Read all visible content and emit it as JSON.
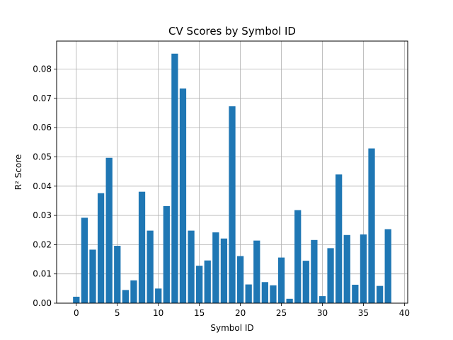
{
  "chart_data": {
    "type": "bar",
    "title": "CV Scores by Symbol ID",
    "xlabel": "Symbol ID",
    "ylabel": "R² Score",
    "x": [
      0,
      1,
      2,
      3,
      4,
      5,
      6,
      7,
      8,
      9,
      10,
      11,
      12,
      13,
      14,
      15,
      16,
      17,
      18,
      19,
      20,
      21,
      22,
      23,
      24,
      25,
      26,
      27,
      28,
      29,
      30,
      31,
      32,
      33,
      34,
      35,
      36,
      37,
      38
    ],
    "values": [
      0.0022,
      0.0292,
      0.0183,
      0.0376,
      0.0497,
      0.0196,
      0.0045,
      0.0078,
      0.0381,
      0.0248,
      0.005,
      0.0332,
      0.0853,
      0.0734,
      0.0248,
      0.0128,
      0.0146,
      0.0242,
      0.0221,
      0.0673,
      0.0161,
      0.0064,
      0.0214,
      0.0072,
      0.0061,
      0.0156,
      0.0015,
      0.0318,
      0.0145,
      0.0216,
      0.0024,
      0.0188,
      0.044,
      0.0233,
      0.0063,
      0.0235,
      0.0529,
      0.0059,
      0.0253
    ],
    "xticks": [
      "0",
      "5",
      "10",
      "15",
      "20",
      "25",
      "30",
      "35",
      "40"
    ],
    "yticks": [
      "0.00",
      "0.01",
      "0.02",
      "0.03",
      "0.04",
      "0.05",
      "0.06",
      "0.07",
      "0.08"
    ],
    "xlim": [
      -2.4,
      40.4
    ],
    "ylim": [
      0,
      0.0896
    ],
    "grid": true,
    "bar_color": "#1f77b4"
  }
}
